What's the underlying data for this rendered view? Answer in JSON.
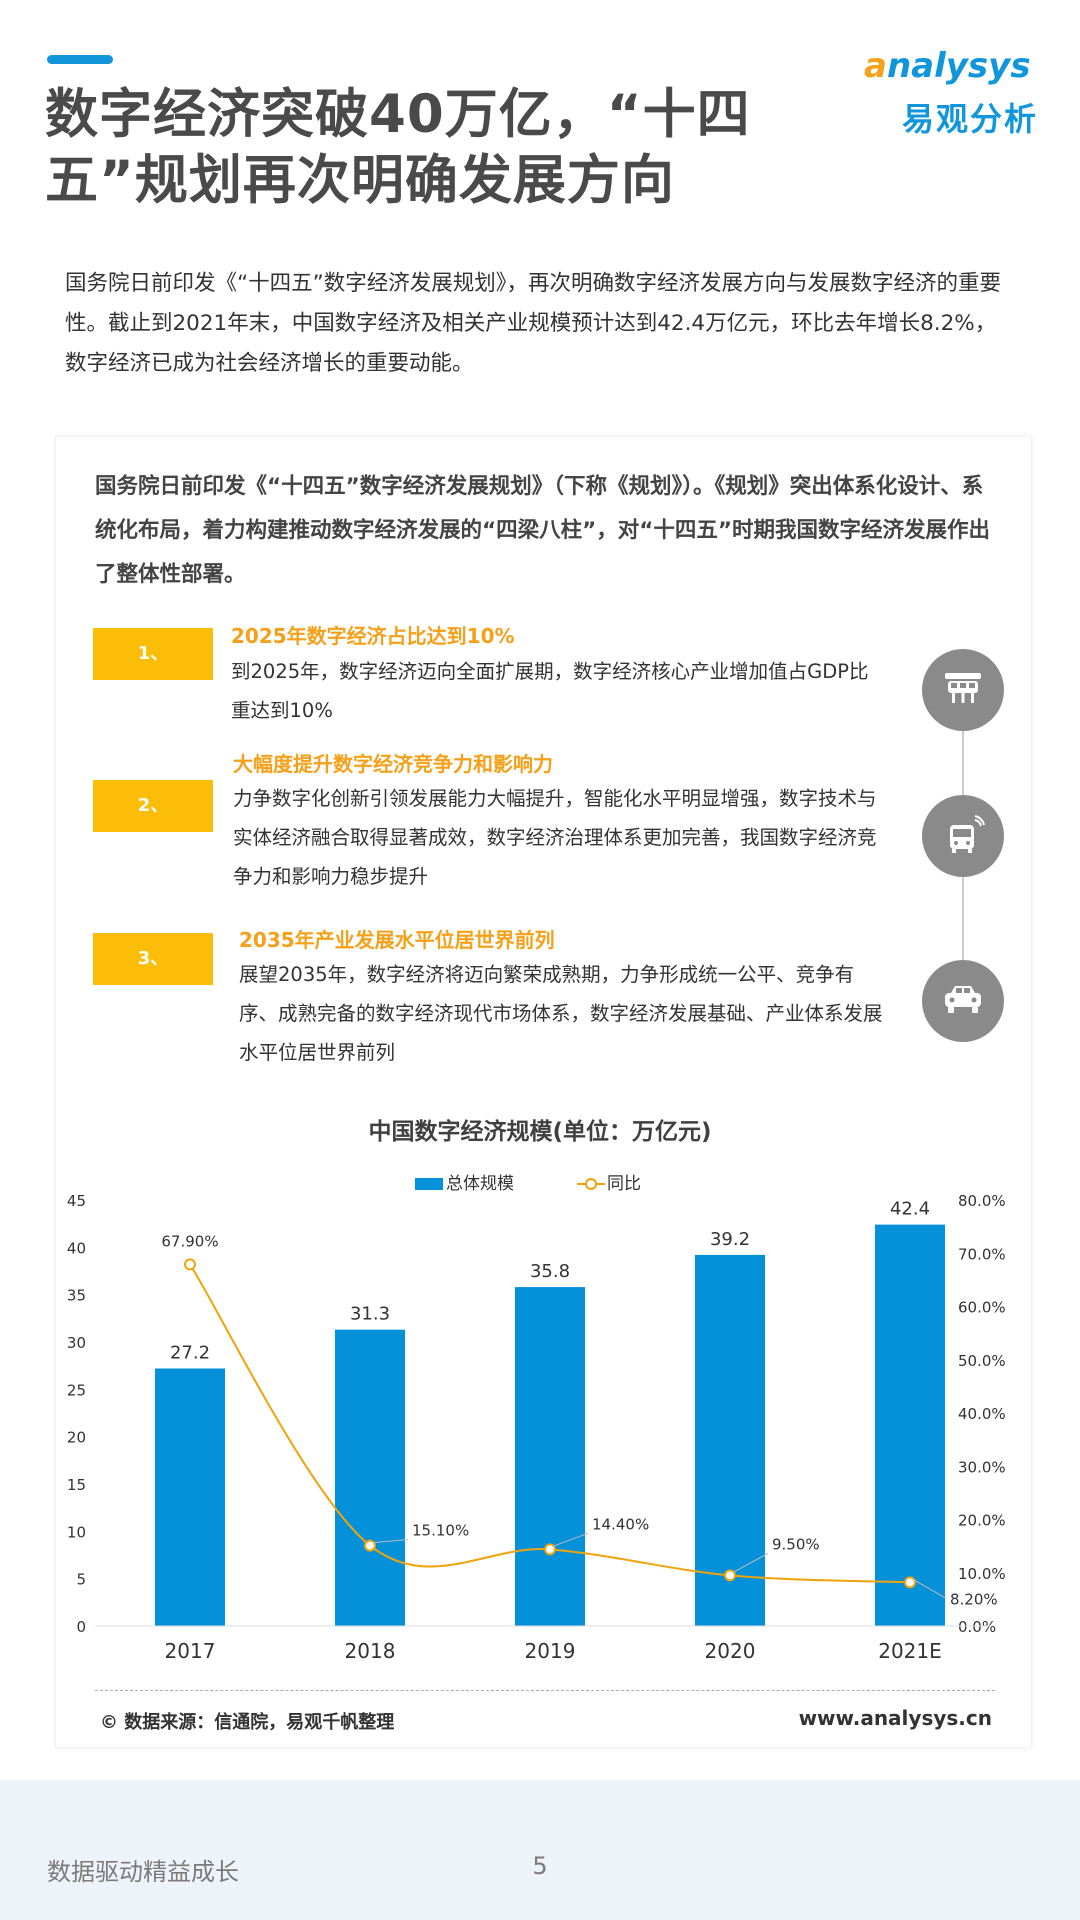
{
  "header": {
    "title_line1": "数字经济突破40万亿，“十四",
    "title_line2": "五”规划再次明确发展方向",
    "logo_en": "nalysys",
    "logo_en_prefix": "a",
    "logo_cn": "易观分析"
  },
  "intro": {
    "text": "国务院日前印发《“十四五”数字经济发展规划》，再次明确数字经济发展方向与发展数字经济的重要性。截止到2021年末，中国数字经济及相关产业规模预计达到42.4万亿元，环比去年增长8.2%，数字经济已成为社会经济增长的重要动能。"
  },
  "card": {
    "intro": "国务院日前印发《“十四五”数字经济发展规划》（下称《规划》）。《规划》突出体系化设计、系统化布局，着力构建推动数字经济发展的“四梁八柱”，对“十四五”时期我国数字经济发展作出了整体性部署。",
    "items": [
      {
        "tag": "1、",
        "title": "2025年数字经济占比达到10%",
        "desc": "到2025年，数字经济迈向全面扩展期，数字经济核心产业增加值占GDP比重达到10%",
        "icon": "monorail-train-icon"
      },
      {
        "tag": "2、",
        "title": "大幅度提升数字经济竞争力和影响力",
        "desc": "力争数字化创新引领发展能力大幅提升，智能化水平明显增强，数字技术与实体经济融合取得显著成效，数字经济治理体系更加完善，我国数字经济竞争力和影响力稳步提升",
        "icon": "bus-wifi-icon"
      },
      {
        "tag": "3、",
        "title": "2035年产业发展水平位居世界前列",
        "desc": "展望2035年，数字经济将迈向繁荣成熟期，力争形成统一公平、竞争有序、成熟完备的数字经济现代市场体系，数字经济发展基础、产业体系发展水平位居世界前列",
        "icon": "car-icon"
      }
    ]
  },
  "chart_data": {
    "type": "bar",
    "title": "中国数字经济规模(单位：万亿元)",
    "categories": [
      "2017",
      "2018",
      "2019",
      "2020",
      "2021E"
    ],
    "series": [
      {
        "name": "总体规模",
        "type": "bar",
        "axis": "left",
        "values": [
          27.2,
          31.3,
          35.8,
          39.2,
          42.4
        ],
        "labels": [
          "27.2",
          "31.3",
          "35.8",
          "39.2",
          "42.4"
        ],
        "color": "#0590da"
      },
      {
        "name": "同比",
        "type": "line",
        "axis": "right",
        "values": [
          67.9,
          15.1,
          14.4,
          9.5,
          8.2
        ],
        "labels": [
          "67.90%",
          "15.10%",
          "14.40%",
          "9.50%",
          "8.20%"
        ],
        "color": "#f0a30a"
      }
    ],
    "ylim": [
      0,
      45
    ],
    "y2lim": [
      0,
      80
    ],
    "yticks": [
      "0",
      "5",
      "10",
      "15",
      "20",
      "25",
      "30",
      "35",
      "40",
      "45"
    ],
    "y2ticks": [
      "0.0%",
      "10.0%",
      "20.0%",
      "30.0%",
      "40.0%",
      "50.0%",
      "60.0%",
      "70.0%",
      "80.0%"
    ],
    "legend_position": "top-center",
    "grid": false
  },
  "footer": {
    "source": "© 数据来源：信通院，易观千帆整理",
    "website": "www.analysys.cn",
    "slogan": "数据驱动精益成长",
    "page_number": "5"
  },
  "colors": {
    "accent_blue": "#1296db",
    "accent_orange": "#f5a018",
    "tag_yellow": "#fbbd08",
    "icon_gray": "#8a8a8a"
  }
}
